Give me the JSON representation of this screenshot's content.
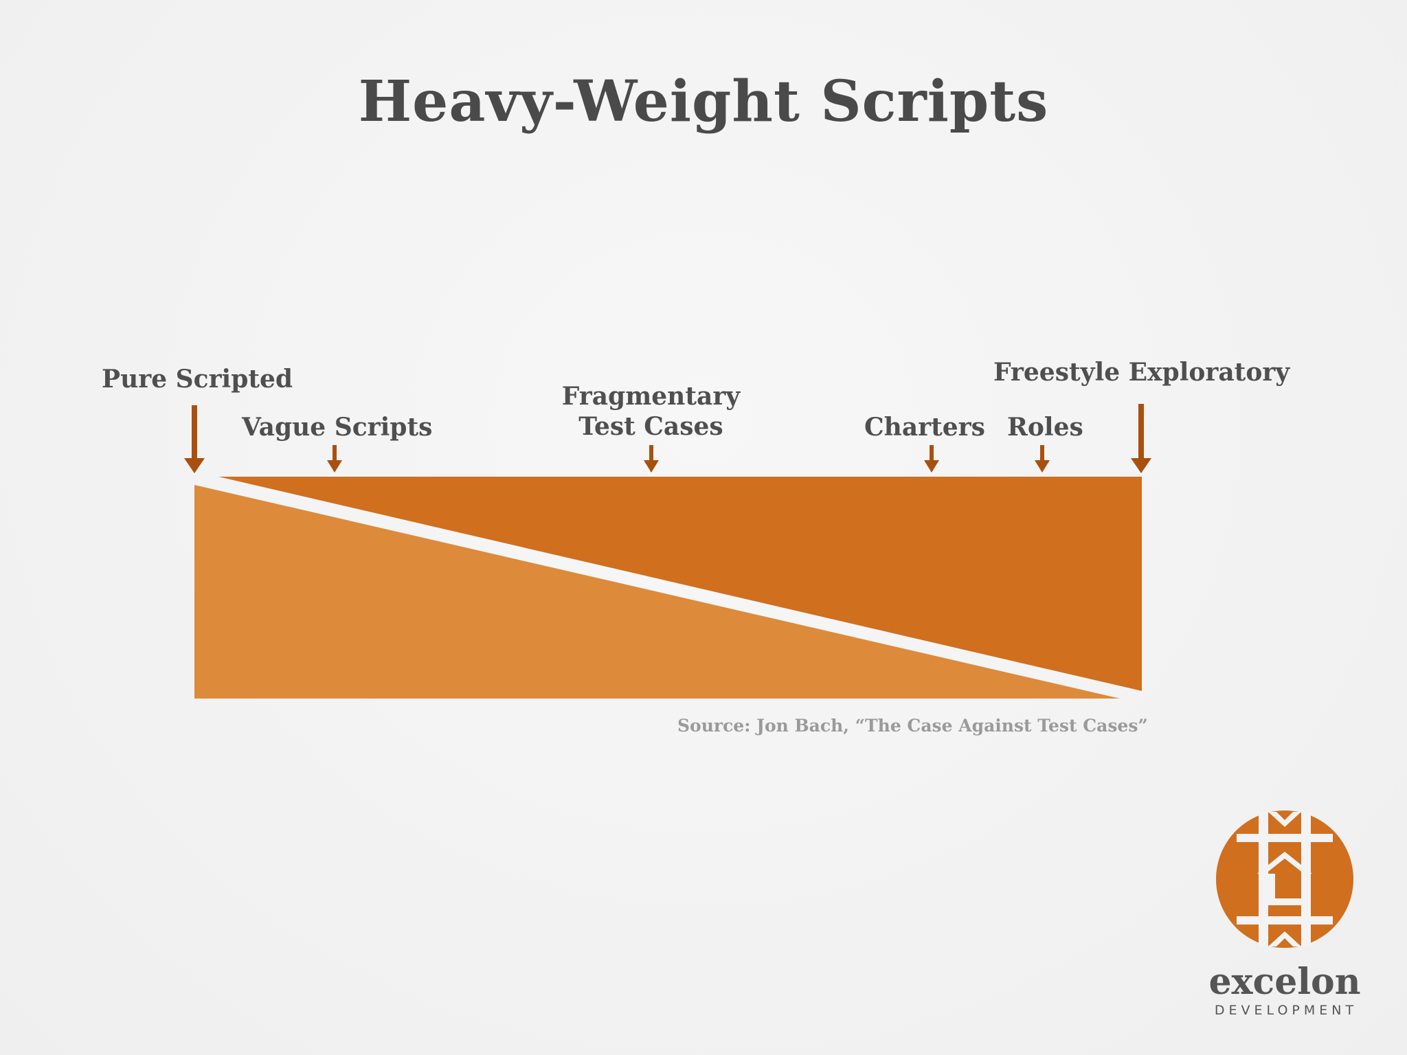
{
  "slide": {
    "title": "Heavy-Weight Scripts",
    "source": "Source: Jon Bach, “The Case Against Test Cases”"
  },
  "spectrum": {
    "labels": {
      "pure_scripted": "Pure Scripted",
      "vague_scripts": "Vague Scripts",
      "fragmentary_line1": "Fragmentary",
      "fragmentary_line2": "Test Cases",
      "charters": "Charters",
      "roles": "Roles",
      "freestyle_exploratory": "Freestyle Exploratory"
    }
  },
  "logo": {
    "name": "excelon",
    "subtitle": "DEVELOPMENT"
  },
  "colors": {
    "dark_orange": "#d06f1e",
    "light_orange": "#dd8a3b",
    "arrow": "#a9500f",
    "title_text": "#4a4a4a",
    "source_text": "#9a9a9a"
  }
}
